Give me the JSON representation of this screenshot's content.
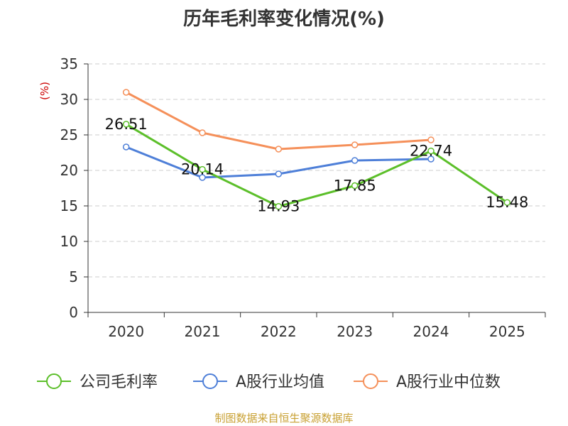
{
  "chart_data": {
    "type": "line",
    "title": "历年毛利率变化情况(%)",
    "ylabel": "(%)",
    "xlabel": "",
    "ylim": [
      0,
      35
    ],
    "yticks": [
      0,
      5,
      10,
      15,
      20,
      25,
      30,
      35
    ],
    "categories": [
      "2020",
      "2021",
      "2022",
      "2023",
      "2024",
      "2025"
    ],
    "grid": true,
    "legend": "bottom",
    "series": [
      {
        "name": "公司毛利率",
        "color": "#5cbf2a",
        "values": [
          26.51,
          20.14,
          14.93,
          17.85,
          22.74,
          15.48
        ],
        "labels": [
          "26.51",
          "20.14",
          "14.93",
          "17.85",
          "22.74",
          "15.48"
        ]
      },
      {
        "name": "A股行业均值",
        "color": "#4e7fd8",
        "values": [
          23.3,
          19.0,
          19.5,
          21.4,
          21.6,
          null
        ]
      },
      {
        "name": "A股行业中位数",
        "color": "#f5905a",
        "values": [
          31.0,
          25.3,
          23.0,
          23.6,
          24.3,
          null
        ]
      }
    ]
  },
  "footer": {
    "source": "制图数据来自恒生聚源数据库"
  }
}
